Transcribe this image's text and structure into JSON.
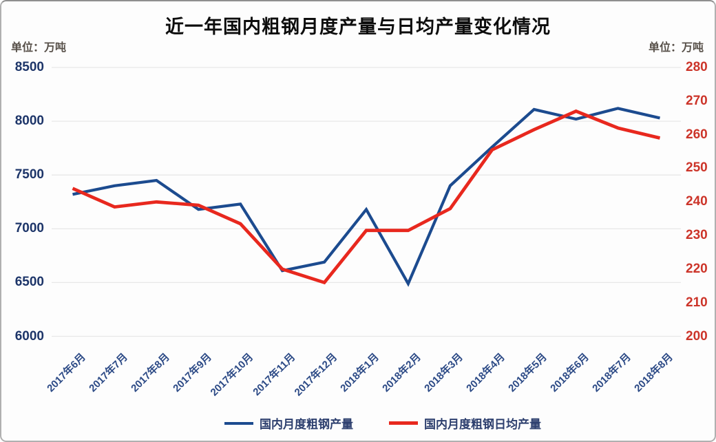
{
  "title": "近一年国内粗钢月度产量与日均产量变化情况",
  "left_axis_unit": "单位：万吨",
  "right_axis_unit": "单位：万吨",
  "colors": {
    "monthly_output_line": "#1c4b8f",
    "daily_output_line": "#e8281e",
    "left_axis_labels": "#1d3569",
    "right_axis_labels": "#cc3429",
    "x_axis_labels": "#2c4a86",
    "gridline": "#e8e8e8",
    "title_text": "#0d0d0d"
  },
  "legend": [
    {
      "label": "国内月度粗钢产量",
      "color": "#1c4b8f"
    },
    {
      "label": "国内月度粗钢日均产量",
      "color": "#e8281e"
    }
  ],
  "chart_data": {
    "type": "line",
    "title": "近一年国内粗钢月度产量与日均产量变化情况",
    "xlabel": "",
    "ylabel_left": "单位：万吨",
    "ylabel_right": "单位：万吨",
    "grid": "horizontal",
    "legend_position": "bottom",
    "categories": [
      "2017年6月",
      "2017年7月",
      "2017年8月",
      "2017年9月",
      "2017年10月",
      "2017年11月",
      "2017年12月",
      "2018年1月",
      "2018年2月",
      "2018年3月",
      "2018年4月",
      "2018年5月",
      "2018年6月",
      "2018年7月",
      "2018年8月"
    ],
    "series": [
      {
        "name": "国内月度粗钢产量",
        "axis": "left",
        "color": "#1c4b8f",
        "values": [
          7320,
          7400,
          7450,
          7180,
          7230,
          6610,
          6690,
          7180,
          6490,
          7400,
          7760,
          8110,
          8020,
          8120,
          8030
        ]
      },
      {
        "name": "国内月度粗钢日均产量",
        "axis": "right",
        "color": "#e8281e",
        "values": [
          244,
          238.5,
          240,
          239,
          233.5,
          220,
          216,
          231.5,
          231.5,
          238,
          255.5,
          261.5,
          267,
          262,
          259
        ]
      }
    ],
    "left_axis": {
      "min": 6000,
      "max": 8500,
      "step": 500,
      "ticks": [
        8500,
        8000,
        7500,
        7000,
        6500,
        6000
      ]
    },
    "right_axis": {
      "min": 200,
      "max": 280,
      "step": 10,
      "ticks": [
        280,
        270,
        260,
        250,
        240,
        230,
        220,
        210,
        200
      ]
    }
  }
}
